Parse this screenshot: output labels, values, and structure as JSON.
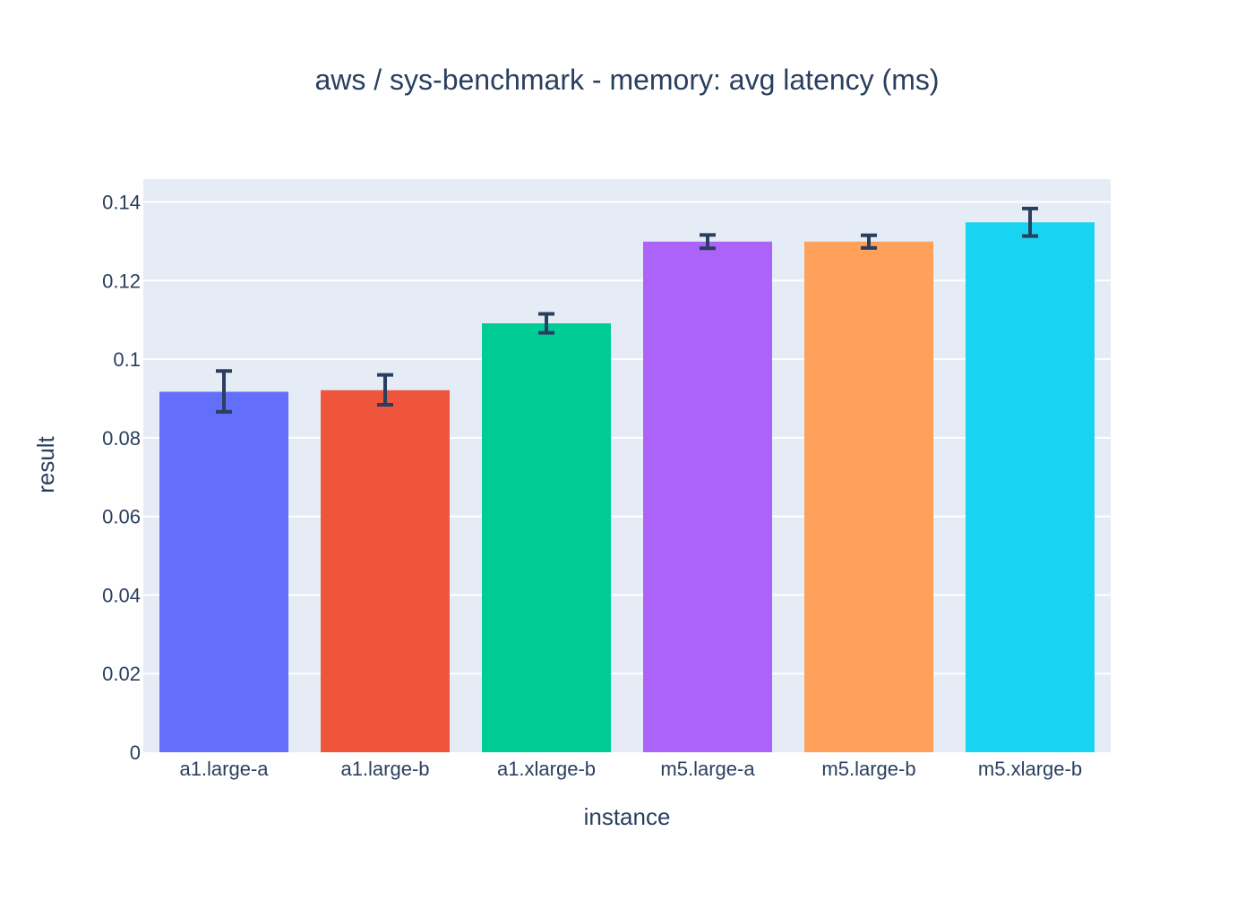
{
  "chart_data": {
    "type": "bar",
    "title": "aws / sys-benchmark - memory: avg latency (ms)",
    "xlabel": "instance",
    "ylabel": "result",
    "categories": [
      "a1.large-a",
      "a1.large-b",
      "a1.xlarge-b",
      "m5.large-a",
      "m5.large-b",
      "m5.xlarge-b"
    ],
    "values": [
      0.0917,
      0.0921,
      0.1091,
      0.1299,
      0.1299,
      0.1348
    ],
    "error_bars": [
      {
        "low": 0.0866,
        "high": 0.097
      },
      {
        "low": 0.0884,
        "high": 0.096
      },
      {
        "low": 0.1067,
        "high": 0.1115
      },
      {
        "low": 0.1282,
        "high": 0.1316
      },
      {
        "low": 0.1283,
        "high": 0.1315
      },
      {
        "low": 0.1313,
        "high": 0.1383
      }
    ],
    "colors": [
      "#636efa",
      "#ef553b",
      "#00cc96",
      "#ab63fa",
      "#ffa15a",
      "#19d3f3"
    ],
    "ylim": [
      0,
      0.1458
    ],
    "yticks": [
      0,
      0.02,
      0.04,
      0.06,
      0.08,
      0.1,
      0.12,
      0.14
    ],
    "ytick_labels": [
      "0",
      "0.02",
      "0.04",
      "0.06",
      "0.08",
      "0.1",
      "0.12",
      "0.14"
    ],
    "grid": true,
    "legend": "none",
    "plot_background": "#e5ecf6",
    "error_bar_color": "#2a3f5f"
  }
}
